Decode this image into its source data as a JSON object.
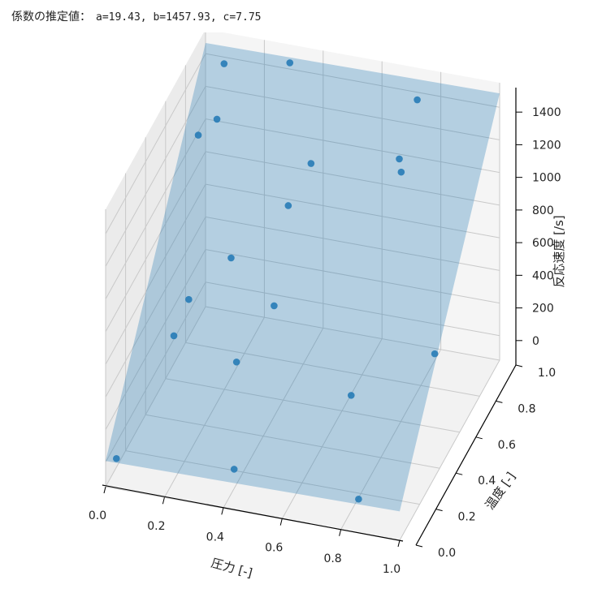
{
  "header": {
    "label": "係数の推定値：",
    "values": "a=19.43, b=1457.93, c=7.75"
  },
  "chart_data": {
    "type": "scatter3d",
    "xlabel": "圧力 [-]",
    "ylabel": "温度 [-]",
    "zlabel": "反応速度 [/s]",
    "xlim": [
      0,
      1
    ],
    "ylim": [
      0,
      1
    ],
    "zlim": [
      -150,
      1550
    ],
    "xticks": [
      "0.0",
      "0.2",
      "0.4",
      "0.6",
      "0.8",
      "1.0"
    ],
    "yticks": [
      "0.0",
      "0.2",
      "0.4",
      "0.6",
      "0.8",
      "1.0"
    ],
    "zticks": [
      "0",
      "200",
      "400",
      "600",
      "800",
      "1000",
      "1200",
      "1400"
    ],
    "grid": true,
    "surface": {
      "equation": "z = a*x + b*y + c",
      "a": 19.43,
      "b": 1457.93,
      "c": 7.75,
      "color": "#1f77b4",
      "alpha": 0.3
    },
    "points": [
      {
        "x": 0.03,
        "y": 0.02,
        "z": 10
      },
      {
        "x": 0.42,
        "y": 0.05,
        "z": 40
      },
      {
        "x": 0.85,
        "y": 0.03,
        "z": 20
      },
      {
        "x": 0.75,
        "y": 0.25,
        "z": 380
      },
      {
        "x": 0.99,
        "y": 0.38,
        "z": 570
      },
      {
        "x": 0.35,
        "y": 0.28,
        "z": 420
      },
      {
        "x": 0.12,
        "y": 0.33,
        "z": 450
      },
      {
        "x": 0.14,
        "y": 0.42,
        "z": 580
      },
      {
        "x": 0.42,
        "y": 0.45,
        "z": 600
      },
      {
        "x": 0.25,
        "y": 0.52,
        "z": 760
      },
      {
        "x": 0.39,
        "y": 0.68,
        "z": 950
      },
      {
        "x": 0.43,
        "y": 0.79,
        "z": 1100
      },
      {
        "x": 0.74,
        "y": 0.78,
        "z": 1160
      },
      {
        "x": 0.72,
        "y": 0.82,
        "z": 1190
      },
      {
        "x": 0.73,
        "y": 0.97,
        "z": 1390
      },
      {
        "x": 0.05,
        "y": 0.78,
        "z": 1160
      },
      {
        "x": 0.1,
        "y": 0.82,
        "z": 1230
      },
      {
        "x": 0.08,
        "y": 0.95,
        "z": 1420
      },
      {
        "x": 0.29,
        "y": 0.99,
        "z": 1450
      }
    ],
    "point_color": "#1f77b4"
  }
}
